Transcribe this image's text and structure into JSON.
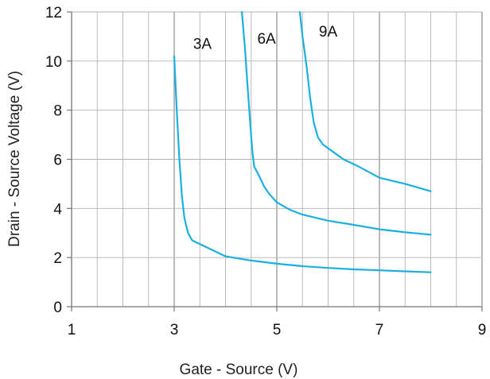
{
  "chart_data": {
    "type": "line",
    "title": "",
    "xlabel": "Gate - Source  (V)",
    "ylabel": "Drain - Source  Voltage  (V)",
    "xlim": [
      1,
      9
    ],
    "ylim": [
      0,
      12
    ],
    "x_ticks": [
      "1",
      "3",
      "5",
      "7",
      "9"
    ],
    "y_ticks": [
      "0",
      "2",
      "4",
      "6",
      "8",
      "10",
      "12"
    ],
    "grid": true,
    "colors": {
      "line": "#1ab0e0",
      "grid": "#b3b3b3",
      "axis": "#777777"
    },
    "series": [
      {
        "points": [
          [
            3.0,
            10.2
          ],
          [
            3.05,
            8.0
          ],
          [
            3.1,
            6.0
          ],
          [
            3.15,
            4.5
          ],
          [
            3.2,
            3.6
          ],
          [
            3.27,
            3.0
          ],
          [
            3.35,
            2.7
          ],
          [
            3.5,
            2.55
          ],
          [
            3.75,
            2.3
          ],
          [
            4.0,
            2.05
          ],
          [
            4.5,
            1.88
          ],
          [
            5.0,
            1.75
          ],
          [
            5.5,
            1.65
          ],
          [
            6.0,
            1.58
          ],
          [
            6.5,
            1.52
          ],
          [
            7.0,
            1.48
          ],
          [
            7.5,
            1.44
          ],
          [
            8.0,
            1.4
          ]
        ]
      },
      {
        "points": [
          [
            4.32,
            12.0
          ],
          [
            4.38,
            10.5
          ],
          [
            4.43,
            9.0
          ],
          [
            4.48,
            7.5
          ],
          [
            4.52,
            6.4
          ],
          [
            4.56,
            5.7
          ],
          [
            4.65,
            5.35
          ],
          [
            4.75,
            4.9
          ],
          [
            4.85,
            4.6
          ],
          [
            5.0,
            4.25
          ],
          [
            5.25,
            3.95
          ],
          [
            5.5,
            3.75
          ],
          [
            6.0,
            3.5
          ],
          [
            6.5,
            3.33
          ],
          [
            7.0,
            3.15
          ],
          [
            7.5,
            3.03
          ],
          [
            8.0,
            2.93
          ]
        ]
      },
      {
        "points": [
          [
            5.45,
            12.0
          ],
          [
            5.5,
            11.0
          ],
          [
            5.58,
            9.8
          ],
          [
            5.65,
            8.5
          ],
          [
            5.72,
            7.5
          ],
          [
            5.8,
            6.9
          ],
          [
            5.9,
            6.6
          ],
          [
            6.1,
            6.3
          ],
          [
            6.3,
            6.0
          ],
          [
            6.6,
            5.7
          ],
          [
            7.0,
            5.25
          ],
          [
            7.5,
            5.0
          ],
          [
            8.0,
            4.7
          ]
        ]
      }
    ],
    "annotations": [
      {
        "text": "3A",
        "x": 3.55,
        "y": 10.5
      },
      {
        "text": "6A",
        "x": 4.8,
        "y": 10.7
      },
      {
        "text": "9A",
        "x": 6.0,
        "y": 11.0
      }
    ]
  }
}
